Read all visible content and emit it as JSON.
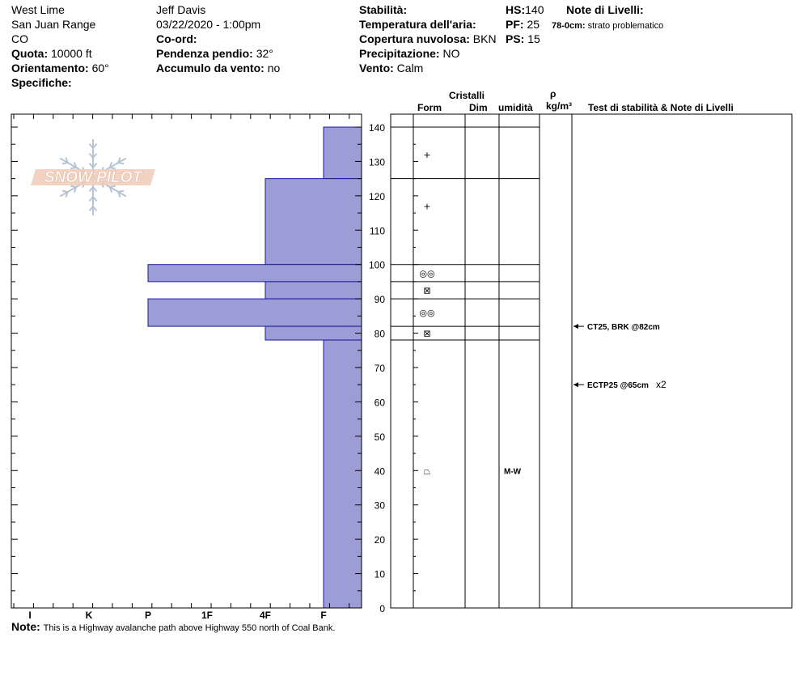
{
  "header": {
    "location": "West Lime",
    "range": "San Juan Range",
    "state": "CO",
    "elevation_label": "Quota:",
    "elevation": "10000 ft",
    "aspect_label": "Orientamento:",
    "aspect": "60°",
    "specifics_label": "Specifiche:",
    "observer": "Jeff Davis",
    "datetime": "03/22/2020 - 1:00pm",
    "coord_label": "Co-ord:",
    "slope_label": "Pendenza pendio:",
    "slope": "32°",
    "wind_loading_label": "Accumulo da vento:",
    "wind_loading": "no",
    "stability_label": "Stabilità:",
    "air_temp_label": "Temperatura dell'aria:",
    "cloud_label": "Copertura nuvolosa:",
    "cloud": "BKN",
    "precip_label": "Precipitazione:",
    "precip": "NO",
    "wind_label": "Vento:",
    "wind": "Calm",
    "hs_label": "HS:",
    "hs": "140",
    "pf_label": "PF:",
    "pf": "25",
    "ps_label": "PS:",
    "ps": "15",
    "layer_notes_label": "Note di Livelli:",
    "layer_note_depth": "78-0cm:",
    "layer_note_text": "strato problematico"
  },
  "logo": {
    "text": "SNOW PILOT"
  },
  "table_headers": {
    "crystals": "Cristalli",
    "form": "Form",
    "dim": "Dim",
    "moisture": "umidità",
    "rho": "ρ",
    "density_unit": "kg/m³",
    "tests": "Test di stabilità & Note di Livelli"
  },
  "note": {
    "label": "Note:",
    "text": "This is a Highway avalanche path above Highway 550 north of Coal Bank."
  },
  "colors": {
    "hardness_fill": "#9c9cd6",
    "hardness_stroke": "#1a1a99",
    "logo_fill": "#f1cdbd",
    "logo_flake": "#b5c5d6"
  },
  "chart_data": {
    "type": "hardness_profile",
    "y_axis": {
      "unit": "cm",
      "range": [
        0,
        140
      ],
      "ticks": [
        0,
        10,
        20,
        30,
        40,
        50,
        60,
        70,
        80,
        90,
        100,
        110,
        120,
        130,
        140
      ]
    },
    "x_axis": {
      "categories": [
        "I",
        "K",
        "P",
        "1F",
        "4F",
        "F"
      ],
      "reversed_hand_hardness": true
    },
    "layers": [
      {
        "top": 140,
        "bottom": 125,
        "hardness": "F"
      },
      {
        "top": 125,
        "bottom": 100,
        "hardness": "4F"
      },
      {
        "top": 100,
        "bottom": 95,
        "hardness": "P"
      },
      {
        "top": 95,
        "bottom": 90,
        "hardness": "4F"
      },
      {
        "top": 90,
        "bottom": 82,
        "hardness": "P"
      },
      {
        "top": 82,
        "bottom": 78,
        "hardness": "4F"
      },
      {
        "top": 78,
        "bottom": 0,
        "hardness": "F"
      }
    ],
    "grain_layers": [
      {
        "top": 140,
        "bottom": 125,
        "form_symbol": "+",
        "moisture": ""
      },
      {
        "top": 125,
        "bottom": 100,
        "form_symbol": "+",
        "moisture": ""
      },
      {
        "top": 100,
        "bottom": 95,
        "form_symbol": "◎◎",
        "moisture": ""
      },
      {
        "top": 95,
        "bottom": 90,
        "form_symbol": "⊠",
        "moisture": ""
      },
      {
        "top": 90,
        "bottom": 82,
        "form_symbol": "◎◎",
        "moisture": ""
      },
      {
        "top": 82,
        "bottom": 78,
        "form_symbol": "⊠",
        "moisture": ""
      },
      {
        "top": 78,
        "bottom": 0,
        "form_symbol": "⏢",
        "moisture": "M-W"
      }
    ],
    "stability_tests": [
      {
        "depth": 82,
        "text": "CT25, BRK @82cm",
        "extra": ""
      },
      {
        "depth": 65,
        "text": "ECTP25 @65cm",
        "extra": "x2"
      }
    ]
  }
}
